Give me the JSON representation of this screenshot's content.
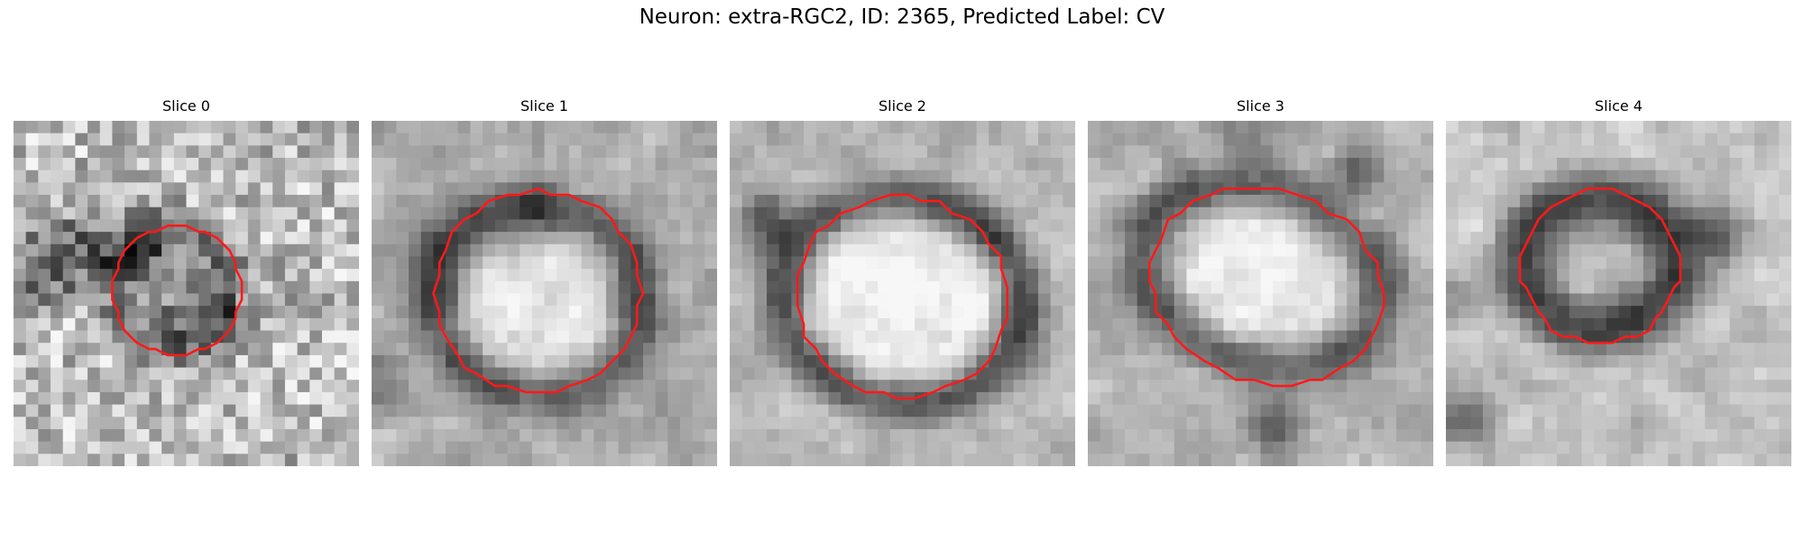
{
  "figure": {
    "title": "Neuron: extra-RGC2, ID: 2365, Predicted Label: CV"
  },
  "panels": [
    {
      "title": "Slice 0"
    },
    {
      "title": "Slice 1"
    },
    {
      "title": "Slice 2"
    },
    {
      "title": "Slice 3"
    },
    {
      "title": "Slice 4"
    }
  ],
  "colors": {
    "contour": "#ff1a1a",
    "colormap": "grayscale",
    "background": "#ffffff"
  }
}
